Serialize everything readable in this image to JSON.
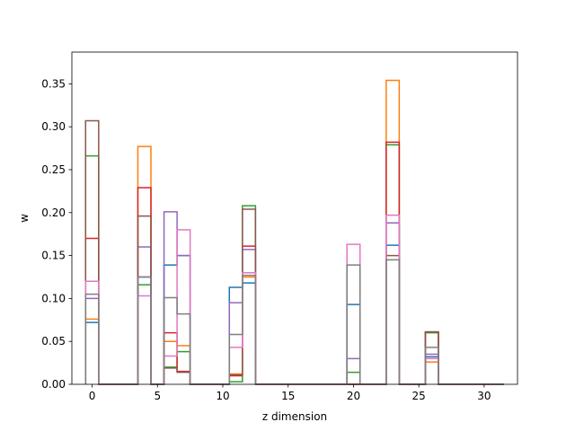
{
  "chart_data": {
    "type": "step",
    "title": "",
    "xlabel": "z dimension",
    "ylabel": "w",
    "xlim": [
      -1.55,
      32.55
    ],
    "ylim": [
      0,
      0.387
    ],
    "xticks": [
      0,
      5,
      10,
      15,
      20,
      25,
      30
    ],
    "yticks": [
      0.0,
      0.05,
      0.1,
      0.15,
      0.2,
      0.25,
      0.3,
      0.35
    ],
    "x_range": [
      0,
      31
    ],
    "colors": [
      "#1f77b4",
      "#ff7f0e",
      "#2ca02c",
      "#d62728",
      "#9467bd",
      "#8c564b",
      "#e377c2",
      "#7f7f7f"
    ],
    "series": [
      {
        "values": {
          "0": 0.072,
          "4": 0.125,
          "6": 0.139,
          "7": 0.15,
          "11": 0.113,
          "12": 0.118,
          "20": 0.093,
          "23": 0.162,
          "26": 0.032
        }
      },
      {
        "values": {
          "0": 0.076,
          "4": 0.277,
          "6": 0.05,
          "7": 0.045,
          "11": 0.012,
          "12": 0.125,
          "20": 0.0,
          "23": 0.354,
          "26": 0.026
        }
      },
      {
        "values": {
          "0": 0.266,
          "4": 0.116,
          "6": 0.02,
          "7": 0.038,
          "11": 0.003,
          "12": 0.208,
          "20": 0.014,
          "23": 0.279,
          "26": 0.06
        }
      },
      {
        "values": {
          "0": 0.17,
          "4": 0.229,
          "6": 0.06,
          "7": 0.015,
          "11": 0.01,
          "12": 0.161,
          "20": 0.0,
          "23": 0.282,
          "26": 0.061
        }
      },
      {
        "values": {
          "0": 0.1,
          "4": 0.16,
          "6": 0.201,
          "7": 0.15,
          "11": 0.095,
          "12": 0.157,
          "20": 0.03,
          "23": 0.188,
          "26": 0.035
        }
      },
      {
        "values": {
          "0": 0.307,
          "4": 0.196,
          "6": 0.019,
          "7": 0.014,
          "11": 0.011,
          "12": 0.204,
          "20": 0.0,
          "23": 0.15,
          "26": 0.061
        }
      },
      {
        "values": {
          "0": 0.12,
          "4": 0.103,
          "6": 0.033,
          "7": 0.18,
          "11": 0.043,
          "12": 0.13,
          "20": 0.163,
          "23": 0.197,
          "26": 0.03
        }
      },
      {
        "values": {
          "0": 0.105,
          "4": 0.125,
          "6": 0.101,
          "7": 0.082,
          "11": 0.058,
          "12": 0.127,
          "20": 0.139,
          "23": 0.145,
          "26": 0.043
        }
      }
    ]
  }
}
